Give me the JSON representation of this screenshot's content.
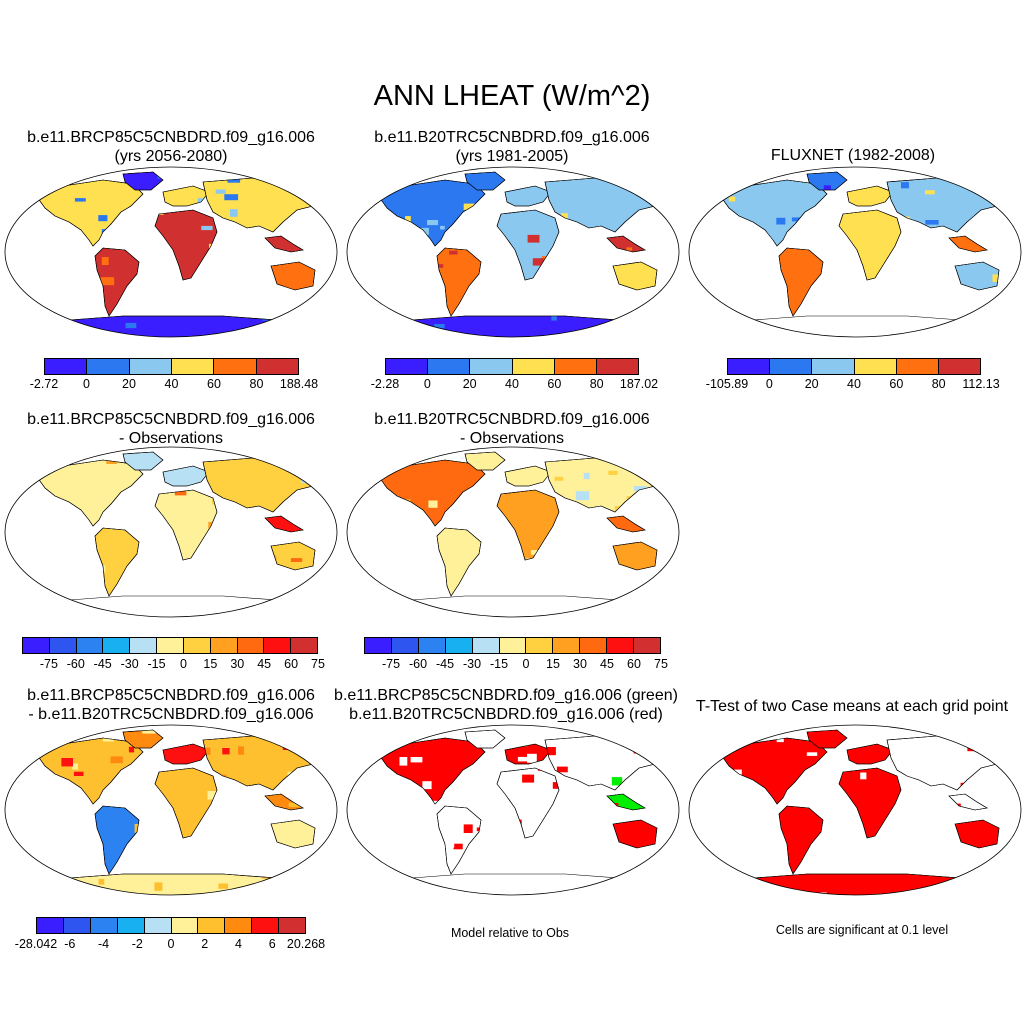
{
  "title": "ANN LHEAT (W/m^2)",
  "colors": {
    "seq": [
      "#3a1eff",
      "#2b78f0",
      "#8ac8f0",
      "#ffe050",
      "#ff7010",
      "#d03030"
    ],
    "diff": [
      "#3a1eff",
      "#2f55f0",
      "#2b82f0",
      "#18b0f0",
      "#b8e0f5",
      "#fff09a",
      "#ffd040",
      "#ffa020",
      "#ff6a10",
      "#ff1010",
      "#d23030"
    ],
    "diff10": [
      "#3a1eff",
      "#2f55f0",
      "#2b82f0",
      "#18b0f0",
      "#b8e0f5",
      "#fff09a",
      "#ffc030",
      "#ff8a10",
      "#ff1010",
      "#d23030"
    ]
  },
  "panels": [
    {
      "id": "p1",
      "line1": "b.e11.BRCP85C5CNBDRD.f09_g16.006",
      "line2": "(yrs 2056-2080)",
      "style": "seq",
      "antarctica": "cold"
    },
    {
      "id": "p2",
      "line1": "b.e11.B20TRC5CNBDRD.f09_g16.006",
      "line2": "(yrs 1981-2005)",
      "style": "seq",
      "antarctica": "cold"
    },
    {
      "id": "p3",
      "line1": "FLUXNET (1982-2008)",
      "line2": "",
      "style": "seq",
      "antarctica": "none"
    },
    {
      "id": "p4",
      "line1": "b.e11.BRCP85C5CNBDRD.f09_g16.006",
      "line2": "- Observations",
      "style": "diff",
      "antarctica": "none"
    },
    {
      "id": "p5",
      "line1": "b.e11.B20TRC5CNBDRD.f09_g16.006",
      "line2": "- Observations",
      "style": "diff",
      "antarctica": "none"
    },
    {
      "id": "p7",
      "line1": "b.e11.BRCP85C5CNBDRD.f09_g16.006",
      "line2": "- b.e11.B20TRC5CNBDRD.f09_g16.006",
      "style": "casediff",
      "antarctica": "yellow"
    },
    {
      "id": "p8",
      "line1": "b.e11.BRCP85C5CNBDRD.f09_g16.006 (green)",
      "line2": "b.e11.B20TRC5CNBDRD.f09_g16.006 (red)",
      "style": "greenred",
      "antarctica": "none"
    },
    {
      "id": "p9",
      "line1": "T-Test of two Case means at each grid point",
      "line2": "",
      "style": "ttest",
      "antarctica": "red"
    }
  ],
  "colorbars": {
    "cb1": [
      "-2.72",
      "0",
      "20",
      "40",
      "60",
      "80",
      "188.48"
    ],
    "cb2": [
      "-2.28",
      "0",
      "20",
      "40",
      "60",
      "80",
      "187.02"
    ],
    "cb3": [
      "-105.89",
      "0",
      "20",
      "40",
      "60",
      "80",
      "112.13"
    ],
    "cb4": [
      "-75",
      "-60",
      "-45",
      "-30",
      "-15",
      "0",
      "15",
      "30",
      "45",
      "60",
      "75"
    ],
    "cb5": [
      "-75",
      "-60",
      "-45",
      "-30",
      "-15",
      "0",
      "15",
      "30",
      "45",
      "60",
      "75"
    ],
    "cb7": [
      "-28.042",
      "-6",
      "-4",
      "-2",
      "0",
      "2",
      "4",
      "6",
      "20.268"
    ]
  },
  "notes": {
    "p8": "Model relative to Obs",
    "p9": "Cells are significant at 0.1 level"
  }
}
